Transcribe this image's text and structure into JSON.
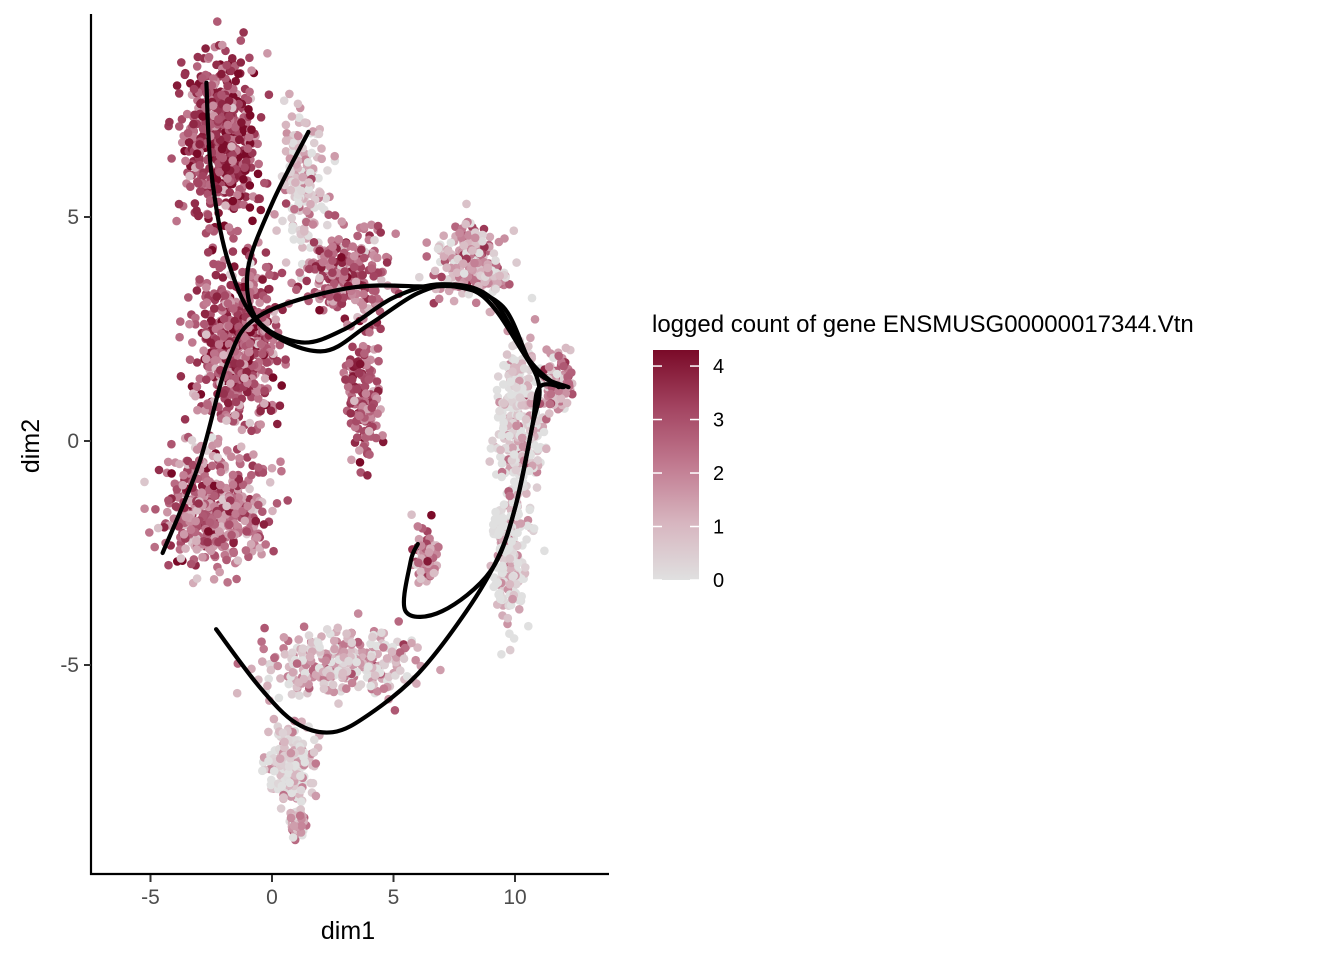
{
  "chart_data": {
    "type": "scatter",
    "title": "",
    "xlabel": "dim1",
    "ylabel": "dim2",
    "xlim": [
      -7.5,
      13.8
    ],
    "ylim": [
      -9.8,
      9.4
    ],
    "x_ticks": [
      -5,
      0,
      5,
      10
    ],
    "y_ticks": [
      -5,
      0,
      5
    ],
    "x_tick_labels": [
      "-5",
      "0",
      "5",
      "10"
    ],
    "y_tick_labels": [
      "-5",
      "0",
      "5"
    ],
    "grid": false,
    "legend": {
      "title": "logged count of gene ENSMUSG00000017344.Vtn",
      "placement": "right",
      "type": "colorbar",
      "range": [
        0,
        4.3
      ],
      "breaks": [
        0,
        1,
        2,
        3,
        4
      ],
      "break_labels": [
        "0",
        "1",
        "2",
        "3",
        "4"
      ],
      "low_color": "#e0e0e0",
      "high_color": "#7a0a28"
    },
    "clusters": [
      {
        "region": "upper-left column",
        "center": [
          -2.1,
          6.8
        ],
        "spread": [
          1.5,
          1.7
        ],
        "n": 520,
        "mean_value": 3.0
      },
      {
        "region": "left column middle",
        "center": [
          -1.4,
          2.2
        ],
        "spread": [
          1.5,
          1.6
        ],
        "n": 560,
        "mean_value": 2.6
      },
      {
        "region": "left column lower",
        "center": [
          -2.3,
          -1.5
        ],
        "spread": [
          2.0,
          1.3
        ],
        "n": 420,
        "mean_value": 2.2
      },
      {
        "region": "upper spike",
        "center": [
          1.3,
          5.8
        ],
        "spread": [
          0.9,
          1.4
        ],
        "n": 150,
        "mean_value": 0.5
      },
      {
        "region": "central upper block",
        "center": [
          3.0,
          3.8
        ],
        "spread": [
          1.4,
          0.9
        ],
        "n": 230,
        "mean_value": 2.4
      },
      {
        "region": "central tongue",
        "center": [
          3.8,
          1.0
        ],
        "spread": [
          0.6,
          1.3
        ],
        "n": 170,
        "mean_value": 2.6
      },
      {
        "region": "upper right lobe",
        "center": [
          8.2,
          4.0
        ],
        "spread": [
          1.4,
          0.8
        ],
        "n": 210,
        "mean_value": 1.4
      },
      {
        "region": "right arc",
        "center": [
          10.2,
          0.2
        ],
        "spread": [
          0.9,
          1.8
        ],
        "n": 300,
        "mean_value": 0.4
      },
      {
        "region": "right tip",
        "center": [
          11.7,
          1.3
        ],
        "spread": [
          0.6,
          0.6
        ],
        "n": 110,
        "mean_value": 1.6
      },
      {
        "region": "lower right",
        "center": [
          9.7,
          -2.6
        ],
        "spread": [
          0.6,
          1.3
        ],
        "n": 210,
        "mean_value": 0.2
      },
      {
        "region": "small inner lobe",
        "center": [
          6.3,
          -2.6
        ],
        "spread": [
          0.5,
          0.6
        ],
        "n": 70,
        "mean_value": 2.0
      },
      {
        "region": "lower band",
        "center": [
          2.8,
          -5.0
        ],
        "spread": [
          2.6,
          0.7
        ],
        "n": 300,
        "mean_value": 1.0
      },
      {
        "region": "lower tail",
        "center": [
          0.8,
          -7.2
        ],
        "spread": [
          0.8,
          0.8
        ],
        "n": 190,
        "mean_value": 0.5
      },
      {
        "region": "lower tail tip",
        "center": [
          1.0,
          -8.5
        ],
        "spread": [
          0.35,
          0.3
        ],
        "n": 50,
        "mean_value": 1.2
      }
    ],
    "trajectories": [
      {
        "points": [
          [
            -2.7,
            8.0
          ],
          [
            -2.5,
            6.0
          ],
          [
            -1.8,
            4.0
          ],
          [
            -0.5,
            2.6
          ],
          [
            2.0,
            2.0
          ],
          [
            4.0,
            2.6
          ],
          [
            6.0,
            3.3
          ],
          [
            7.5,
            3.45
          ],
          [
            9.5,
            3.0
          ],
          [
            10.8,
            1.6
          ],
          [
            12.2,
            1.2
          ]
        ]
      },
      {
        "points": [
          [
            1.5,
            6.9
          ],
          [
            0.0,
            5.3
          ],
          [
            -1.0,
            3.8
          ],
          [
            -0.6,
            2.7
          ],
          [
            1.2,
            2.2
          ],
          [
            3.0,
            2.5
          ],
          [
            5.0,
            3.2
          ],
          [
            7.0,
            3.5
          ],
          [
            9.0,
            3.2
          ],
          [
            10.6,
            1.8
          ],
          [
            11.8,
            1.2
          ]
        ]
      },
      {
        "points": [
          [
            -4.5,
            -2.5
          ],
          [
            -3.0,
            -0.5
          ],
          [
            -1.8,
            1.8
          ],
          [
            -0.5,
            2.8
          ],
          [
            3.0,
            3.4
          ],
          [
            6.0,
            3.45
          ],
          [
            8.5,
            3.3
          ],
          [
            10.3,
            2.0
          ],
          [
            11.0,
            1.2
          ],
          [
            10.7,
            0.3
          ],
          [
            10.0,
            -1.5
          ],
          [
            9.0,
            -2.9
          ],
          [
            7.0,
            -3.8
          ],
          [
            5.5,
            -3.8
          ],
          [
            5.7,
            -2.7
          ],
          [
            6.0,
            -2.3
          ]
        ]
      },
      {
        "points": [
          [
            -2.3,
            -4.2
          ],
          [
            -0.5,
            -5.5
          ],
          [
            1.0,
            -6.3
          ],
          [
            2.5,
            -6.5
          ],
          [
            4.0,
            -6.1
          ],
          [
            6.0,
            -5.2
          ],
          [
            8.0,
            -3.8
          ],
          [
            9.3,
            -2.6
          ],
          [
            10.0,
            -1.5
          ],
          [
            10.7,
            0.3
          ],
          [
            11.0,
            1.2
          ],
          [
            12.0,
            1.2
          ]
        ]
      }
    ]
  }
}
